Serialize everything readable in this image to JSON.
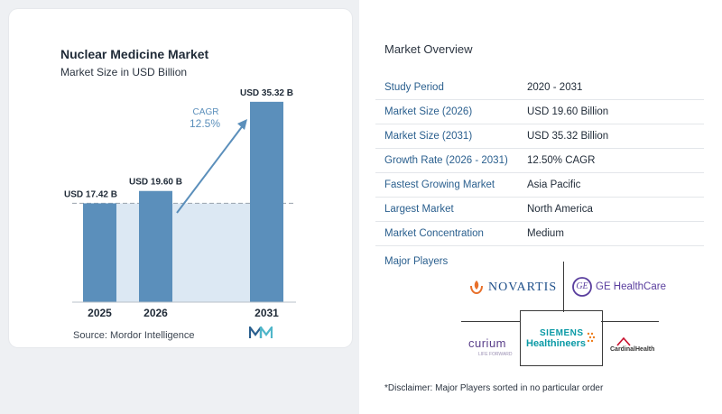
{
  "chart_data": {
    "type": "bar",
    "title": "Nuclear Medicine Market",
    "subtitle": "Market Size in USD Billion",
    "categories": [
      "2025",
      "2026",
      "2031"
    ],
    "values": [
      17.42,
      19.6,
      35.32
    ],
    "data_labels": [
      "USD 17.42 B",
      "USD 19.60 B",
      "USD 35.32 B"
    ],
    "ylim": [
      0,
      38
    ],
    "cagr_label": "CAGR",
    "cagr_value": "12.5%",
    "source": "Source:  Mordor Intelligence",
    "colors": {
      "bar": "#5b8fbb",
      "bar_top": "#6f9fc7",
      "shade": "#dce8f3",
      "arrow": "#5b8fbb"
    }
  },
  "overview": {
    "title": "Market Overview",
    "rows": [
      {
        "key": "Study Period",
        "value": "2020 - 2031"
      },
      {
        "key": "Market Size (2026)",
        "value": "USD 19.60 Billion"
      },
      {
        "key": "Market Size (2031)",
        "value": "USD 35.32 Billion"
      },
      {
        "key": "Growth Rate (2026 - 2031)",
        "value": "12.50% CAGR"
      },
      {
        "key": "Fastest Growing Market",
        "value": "Asia Pacific"
      },
      {
        "key": "Largest Market",
        "value": "North America"
      },
      {
        "key": "Market Concentration",
        "value": "Medium"
      }
    ]
  },
  "players": {
    "title": "Major Players",
    "novartis": "NOVARTIS",
    "ge": "GE HealthCare",
    "ge_mark": "GE",
    "siemens_1": "SIEMENS",
    "siemens_2": "Healthineers",
    "curium": "curium",
    "curium_sub": "LIFE FORWARD",
    "cardinal": "CardinalHealth"
  },
  "disclaimer": "*Disclaimer: Major Players sorted in no particular order"
}
